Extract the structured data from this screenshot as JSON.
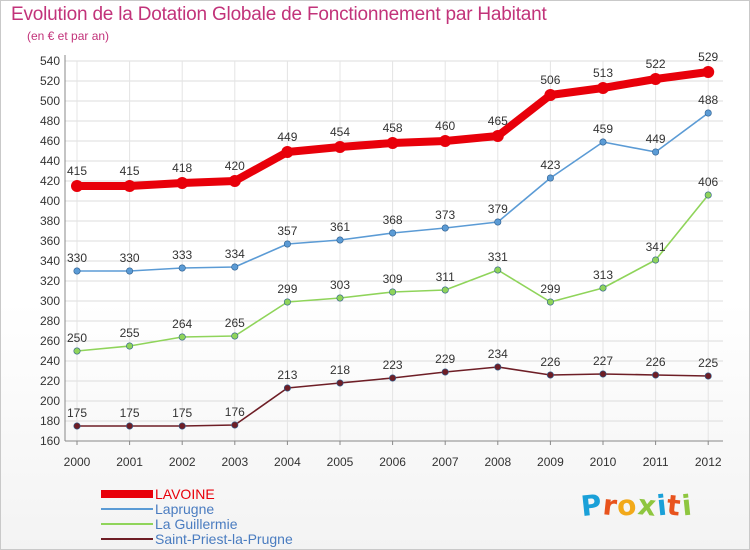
{
  "title": "Evolution de la Dotation Globale de Fonctionnement par Habitant",
  "subtitle": "(en € et par an)",
  "logo": {
    "text": "Proxiti",
    "letter_colors": [
      "#1aa0d8",
      "#e8531d",
      "#f2a91a",
      "#8ec63f",
      "#1aa0d8",
      "#e8531d",
      "#8ec63f"
    ]
  },
  "chart_data": {
    "type": "line",
    "title": "Evolution de la Dotation Globale de Fonctionnement par Habitant",
    "subtitle": "(en € et par an)",
    "xlabel": "",
    "ylabel": "",
    "categories": [
      "2000",
      "2001",
      "2002",
      "2003",
      "2004",
      "2005",
      "2006",
      "2007",
      "2008",
      "2009",
      "2010",
      "2011",
      "2012"
    ],
    "ylim": [
      160,
      540
    ],
    "yticks": [
      160,
      180,
      200,
      220,
      240,
      260,
      280,
      300,
      320,
      340,
      360,
      380,
      400,
      420,
      440,
      460,
      480,
      500,
      520,
      540
    ],
    "grid": true,
    "legend_position": "bottom-left",
    "series": [
      {
        "name": "LAVOINE",
        "color": "#e8000a",
        "emphasis": true,
        "values": [
          415,
          415,
          418,
          420,
          449,
          454,
          458,
          460,
          465,
          506,
          513,
          522,
          529
        ]
      },
      {
        "name": "Laprugne",
        "color": "#5b9bd5",
        "emphasis": false,
        "values": [
          330,
          330,
          333,
          334,
          357,
          361,
          368,
          373,
          379,
          423,
          459,
          449,
          488
        ]
      },
      {
        "name": "La Guillermie",
        "color": "#8fd45a",
        "emphasis": false,
        "values": [
          250,
          255,
          264,
          265,
          299,
          303,
          309,
          311,
          331,
          299,
          313,
          341,
          406
        ]
      },
      {
        "name": "Saint-Priest-la-Prugne",
        "color": "#6e1e26",
        "emphasis": false,
        "values": [
          175,
          175,
          175,
          176,
          213,
          218,
          223,
          229,
          234,
          226,
          227,
          226,
          225
        ]
      }
    ]
  }
}
